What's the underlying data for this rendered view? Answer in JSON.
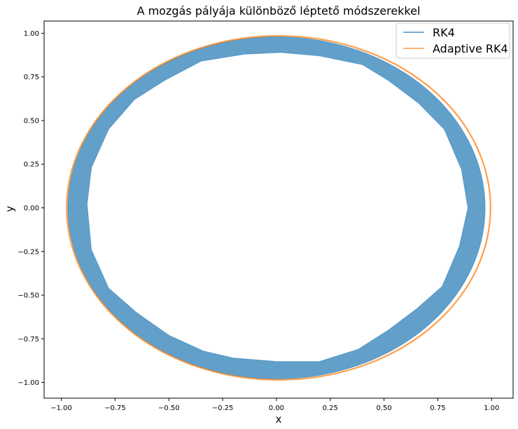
{
  "chart_data": {
    "type": "line",
    "title": "A mozgás pályája különböző léptető módszerekkel",
    "xlabel": "x",
    "ylabel": "y",
    "xlim": [
      -1.08,
      1.1
    ],
    "ylim": [
      -1.09,
      1.07
    ],
    "xticks": [
      -1.0,
      -0.75,
      -0.5,
      -0.25,
      0.0,
      0.25,
      0.5,
      0.75,
      1.0
    ],
    "xtick_labels": [
      "−1.00",
      "−0.75",
      "−0.50",
      "−0.25",
      "0.00",
      "0.25",
      "0.50",
      "0.75",
      "1.00"
    ],
    "yticks": [
      -1.0,
      -0.75,
      -0.5,
      -0.25,
      0.0,
      0.25,
      0.5,
      0.75,
      1.0
    ],
    "ytick_labels": [
      "−1.00",
      "−0.75",
      "−0.50",
      "−0.25",
      "0.00",
      "0.25",
      "0.50",
      "0.75",
      "1.00"
    ],
    "grid": false,
    "legend_position": "top-right",
    "series": [
      {
        "name": "RK4",
        "color": "#1f77b4",
        "kind": "band",
        "outer_radius_x": 0.97,
        "outer_radius_y": 0.98,
        "inner_x": [
          0.89,
          0.86,
          0.78,
          0.66,
          0.52,
          0.4,
          0.2,
          0.02,
          -0.15,
          -0.35,
          -0.52,
          -0.66,
          -0.78,
          -0.86,
          -0.88,
          -0.86,
          -0.78,
          -0.65,
          -0.5,
          -0.34,
          -0.2,
          0.0,
          0.2,
          0.38,
          0.52,
          0.65,
          0.77,
          0.85,
          0.89
        ],
        "inner_y": [
          0.0,
          0.22,
          0.45,
          0.6,
          0.73,
          0.82,
          0.87,
          0.89,
          0.88,
          0.84,
          0.73,
          0.62,
          0.45,
          0.23,
          0.02,
          -0.24,
          -0.46,
          -0.6,
          -0.73,
          -0.82,
          -0.86,
          -0.88,
          -0.88,
          -0.81,
          -0.7,
          -0.58,
          -0.45,
          -0.22,
          0.0
        ]
      },
      {
        "name": "Adaptive RK4",
        "color": "#ff7f0e",
        "kind": "ellipse",
        "cx": 0.01,
        "cy": 0.0,
        "rx": 0.985,
        "ry": 0.985
      }
    ]
  }
}
